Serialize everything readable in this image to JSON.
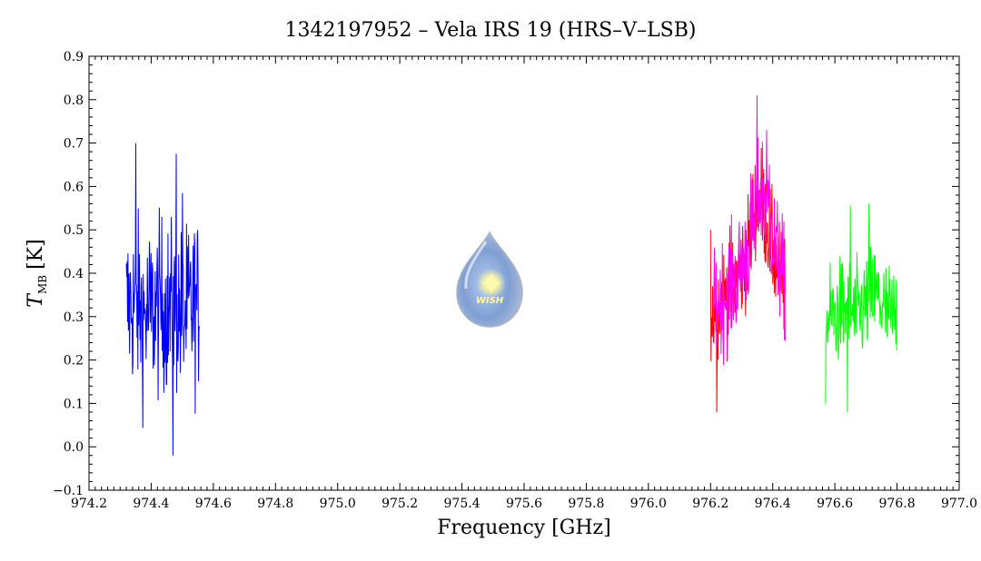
{
  "chart_data": {
    "type": "line",
    "title": "1342197952 – Vela IRS 19 (HRS–V–LSB)",
    "xlabel": "Frequency [GHz]",
    "ylabel": {
      "symbol": "T",
      "subscript": "MB",
      "unit": "[K]"
    },
    "xlim": [
      974.2,
      977.0
    ],
    "ylim": [
      -0.1,
      0.9
    ],
    "xticks": [
      "974.2",
      "974.4",
      "974.6",
      "974.8",
      "975.0",
      "975.2",
      "975.4",
      "975.6",
      "975.8",
      "976.0",
      "976.2",
      "976.4",
      "976.6",
      "976.8",
      "977.0"
    ],
    "yticks": [
      "−0.1",
      "0.0",
      "0.1",
      "0.2",
      "0.3",
      "0.4",
      "0.5",
      "0.6",
      "0.7",
      "0.8",
      "0.9"
    ],
    "grid": false,
    "series": [
      {
        "color": "#0000ff",
        "x": [
          974.32,
          974.34,
          974.36,
          974.38,
          974.4,
          974.42,
          974.44,
          974.46,
          974.48,
          974.5,
          974.52,
          974.54,
          974.555
        ],
        "mean": [
          0.32,
          0.33,
          0.32,
          0.3,
          0.31,
          0.32,
          0.33,
          0.31,
          0.32,
          0.3,
          0.31,
          0.33,
          0.32
        ],
        "spread": 0.2,
        "peaks": [
          [
            974.35,
            0.7
          ],
          [
            974.48,
            0.675
          ],
          [
            974.5,
            0.585
          ],
          [
            974.47,
            -0.02
          ]
        ]
      },
      {
        "color": "#ff0000",
        "x": [
          976.2,
          976.22,
          976.24,
          976.26,
          976.28,
          976.3,
          976.32,
          976.34,
          976.36,
          976.38,
          976.4,
          976.42,
          976.44
        ],
        "mean": [
          0.3,
          0.33,
          0.34,
          0.36,
          0.38,
          0.42,
          0.45,
          0.55,
          0.58,
          0.52,
          0.45,
          0.4,
          0.36
        ],
        "spread": 0.12,
        "peaks": [
          [
            976.22,
            0.08
          ],
          [
            976.2,
            0.5
          ],
          [
            976.26,
            0.47
          ]
        ]
      },
      {
        "color": "#ff00ff",
        "x": [
          976.21,
          976.23,
          976.25,
          976.27,
          976.29,
          976.31,
          976.33,
          976.35,
          976.37,
          976.39,
          976.41,
          976.43,
          976.44
        ],
        "mean": [
          0.32,
          0.34,
          0.36,
          0.37,
          0.4,
          0.43,
          0.46,
          0.56,
          0.6,
          0.52,
          0.45,
          0.4,
          0.37
        ],
        "spread": 0.13,
        "peaks": [
          [
            976.35,
            0.835
          ],
          [
            976.35,
            0.81
          ],
          [
            976.38,
            0.73
          ],
          [
            976.39,
            0.65
          ],
          [
            976.33,
            0.63
          ]
        ]
      },
      {
        "color": "#00ff00",
        "x": [
          976.57,
          976.59,
          976.61,
          976.63,
          976.65,
          976.67,
          976.69,
          976.71,
          976.73,
          976.75,
          976.77,
          976.79,
          976.8
        ],
        "mean": [
          0.28,
          0.3,
          0.31,
          0.32,
          0.31,
          0.3,
          0.32,
          0.34,
          0.35,
          0.33,
          0.31,
          0.3,
          0.3
        ],
        "spread": 0.12,
        "peaks": [
          [
            976.65,
            0.555
          ],
          [
            976.71,
            0.56
          ],
          [
            976.64,
            0.08
          ],
          [
            976.57,
            0.1
          ]
        ]
      }
    ]
  },
  "logo": {
    "text": "WISH"
  }
}
